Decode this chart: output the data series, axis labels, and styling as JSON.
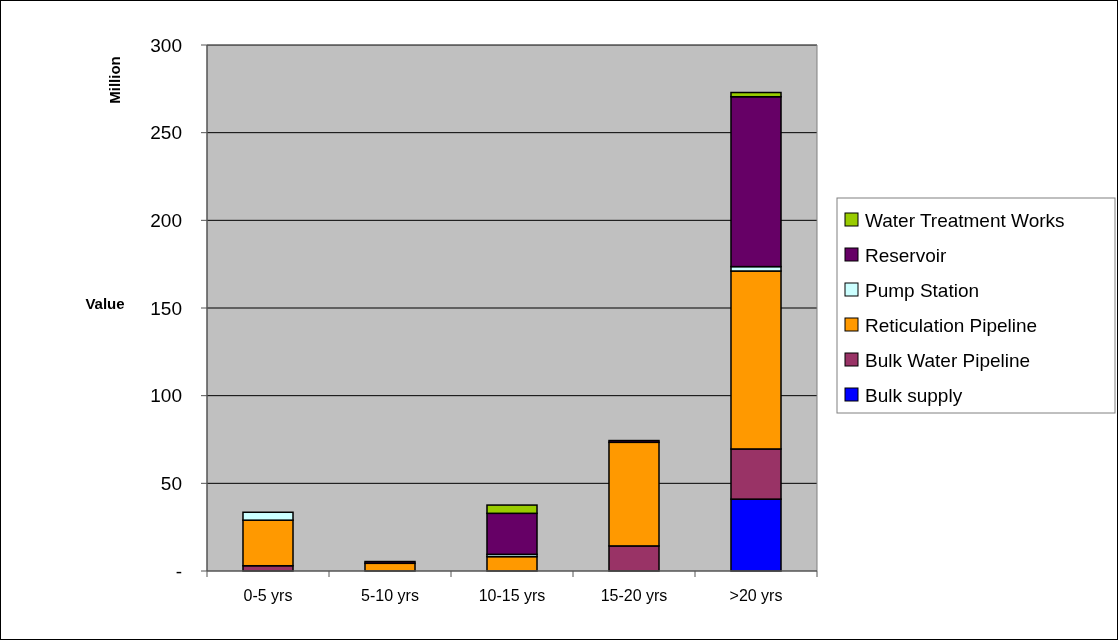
{
  "chart_data": {
    "type": "bar",
    "stacked": true,
    "ylabel": "Value",
    "annotations": [
      "Million"
    ],
    "categories": [
      "0-5 yrs",
      "5-10 yrs",
      "10-15 yrs",
      "15-20 yrs",
      ">20 yrs"
    ],
    "series": [
      {
        "name": "Bulk supply",
        "color": "#0000ff",
        "values": [
          0,
          0,
          0,
          0,
          41
        ]
      },
      {
        "name": "Bulk Water Pipeline",
        "color": "#993366",
        "values": [
          3,
          null,
          0,
          14.3,
          28.6
        ]
      },
      {
        "name": "Reticulation Pipeline",
        "color": "#ff9900",
        "values": [
          26,
          4.4,
          8.2,
          59.1,
          101.5
        ]
      },
      {
        "name": "Pump Station",
        "color": "#ccffff",
        "values": [
          4.5,
          0,
          1.3,
          0,
          2.5
        ]
      },
      {
        "name": "Reservoir",
        "color": "#660066",
        "values": [
          0,
          1,
          23.4,
          1,
          96.9
        ]
      },
      {
        "name": "Water Treatment Works",
        "color": "#99cc00",
        "values": [
          0,
          0,
          4.7,
          0,
          2.4
        ]
      }
    ],
    "ylim": [
      0,
      300
    ],
    "yticks": [
      {
        "value": 0,
        "label": "-"
      },
      50,
      100,
      150,
      200,
      250,
      300
    ],
    "grid": "y",
    "legend": "right"
  }
}
